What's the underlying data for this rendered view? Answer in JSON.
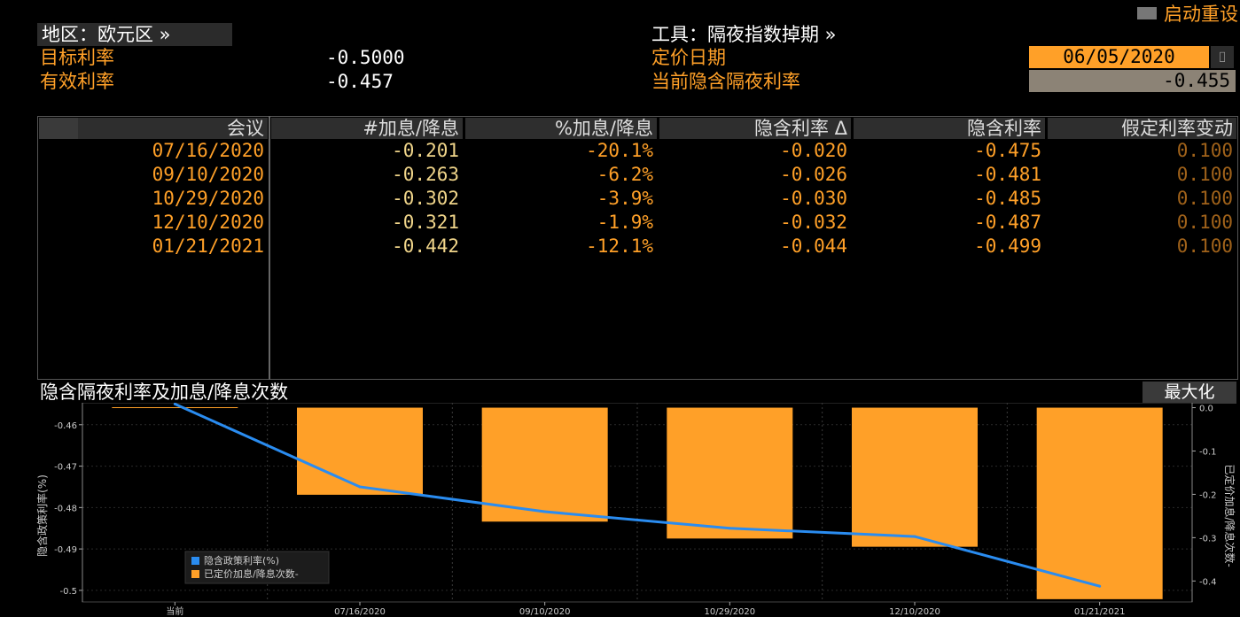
{
  "header": {
    "region_label": "地区：欧元区 »",
    "reset_label": "启动重设",
    "tool_label": "工具：隔夜指数掉期 »",
    "target_rate_label": "目标利率",
    "target_rate_value": "-0.5000",
    "effective_rate_label": "有效利率",
    "effective_rate_value": "-0.457",
    "pricing_date_label": "定价日期",
    "pricing_date_value": "06/05/2020",
    "implied_overnight_label": "当前隐含隔夜利率",
    "implied_overnight_value": "-0.455"
  },
  "table": {
    "headers": [
      "会议",
      "#加息/降息",
      "%加息/降息",
      "隐含利率 Δ",
      "隐含利率",
      "假定利率变动"
    ],
    "rows": [
      [
        "07/16/2020",
        "-0.201",
        "-20.1%",
        "-0.020",
        "-0.475",
        "0.100"
      ],
      [
        "09/10/2020",
        "-0.263",
        "-6.2%",
        "-0.026",
        "-0.481",
        "0.100"
      ],
      [
        "10/29/2020",
        "-0.302",
        "-3.9%",
        "-0.030",
        "-0.485",
        "0.100"
      ],
      [
        "12/10/2020",
        "-0.321",
        "-1.9%",
        "-0.032",
        "-0.487",
        "0.100"
      ],
      [
        "01/21/2021",
        "-0.442",
        "-12.1%",
        "-0.044",
        "-0.499",
        "0.100"
      ]
    ]
  },
  "chart_title": "隐含隔夜利率及加息/降息次数",
  "maximize_label": "最大化",
  "colors": {
    "orange": "#ffa028",
    "blue": "#2a8cf0",
    "bg": "#000000"
  },
  "chart_data": {
    "type": "bar",
    "categories": [
      "当前",
      "07/16/2020",
      "09/10/2020",
      "10/29/2020",
      "12/10/2020",
      "01/21/2021"
    ],
    "series": [
      {
        "name": "已定价加息/降息次数-",
        "type": "bar",
        "axis": "right",
        "values": [
          0,
          -0.201,
          -0.263,
          -0.302,
          -0.321,
          -0.442
        ]
      },
      {
        "name": "隐含政策利率(%)",
        "type": "line",
        "axis": "left",
        "values": [
          -0.455,
          -0.475,
          -0.481,
          -0.485,
          -0.487,
          -0.499
        ]
      }
    ],
    "ylabel_left": "隐含政策利率(%)",
    "ylabel_right": "已定价加息/降息次数-",
    "ylim_left": [
      -0.5028,
      -0.4547
    ],
    "yticks_left": [
      "-0.46",
      "-0.47",
      "-0.48",
      "-0.49",
      "-0.5"
    ],
    "ylim_right": [
      -0.4484,
      0.0113
    ],
    "yticks_right": [
      "0.0",
      "-0.1",
      "-0.2",
      "-0.3",
      "-0.4"
    ],
    "legend_position": "bottom-left",
    "grid": true
  }
}
